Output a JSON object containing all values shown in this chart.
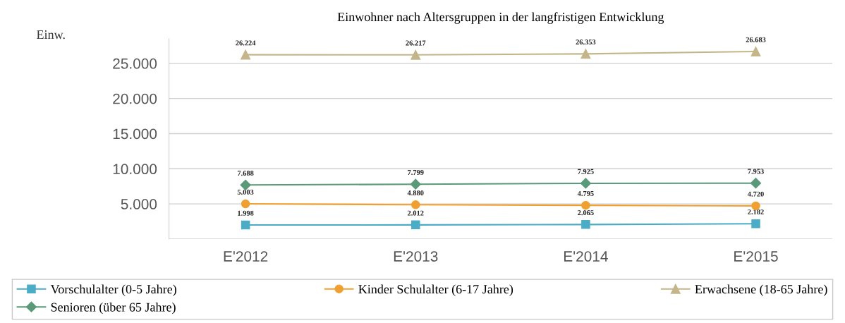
{
  "chart_data": {
    "type": "line",
    "title": "Einwohner nach Altersgruppen in der langfristigen Entwicklung",
    "ylabel": "Einw.",
    "categories": [
      "E'2012",
      "E'2013",
      "E'2014",
      "E'2015"
    ],
    "series": [
      {
        "name": "Vorschulalter (0-5 Jahre)",
        "color": "#4bacc6",
        "marker": "square",
        "values": [
          1998,
          2012,
          2065,
          2182
        ],
        "value_labels": [
          "1.998",
          "2.012",
          "2.065",
          "2.182"
        ]
      },
      {
        "name": "Kinder Schulalter (6-17 Jahre)",
        "color": "#f0a030",
        "marker": "circle",
        "values": [
          5003,
          4880,
          4795,
          4720
        ],
        "value_labels": [
          "5.003",
          "4.880",
          "4.795",
          "4.720"
        ]
      },
      {
        "name": "Erwachsene (18-65 Jahre)",
        "color": "#c4b58a",
        "marker": "triangle",
        "values": [
          26224,
          26217,
          26353,
          26683
        ],
        "value_labels": [
          "26.224",
          "26.217",
          "26.353",
          "26.683"
        ]
      },
      {
        "name": "Senioren (über 65 Jahre)",
        "color": "#5a9a78",
        "marker": "diamond",
        "values": [
          7688,
          7799,
          7925,
          7953
        ],
        "value_labels": [
          "7.688",
          "7.799",
          "7.925",
          "7.953"
        ]
      }
    ],
    "ylim": [
      0,
      28500
    ],
    "yticks": [
      {
        "value": 0,
        "label": null
      },
      {
        "value": 5000,
        "label": "5.000"
      },
      {
        "value": 10000,
        "label": "10.000"
      },
      {
        "value": 15000,
        "label": "15.000"
      },
      {
        "value": 20000,
        "label": "20.000"
      },
      {
        "value": 25000,
        "label": "25.000"
      }
    ],
    "grid": "y",
    "legend": "bottom",
    "line_style": "solid"
  }
}
